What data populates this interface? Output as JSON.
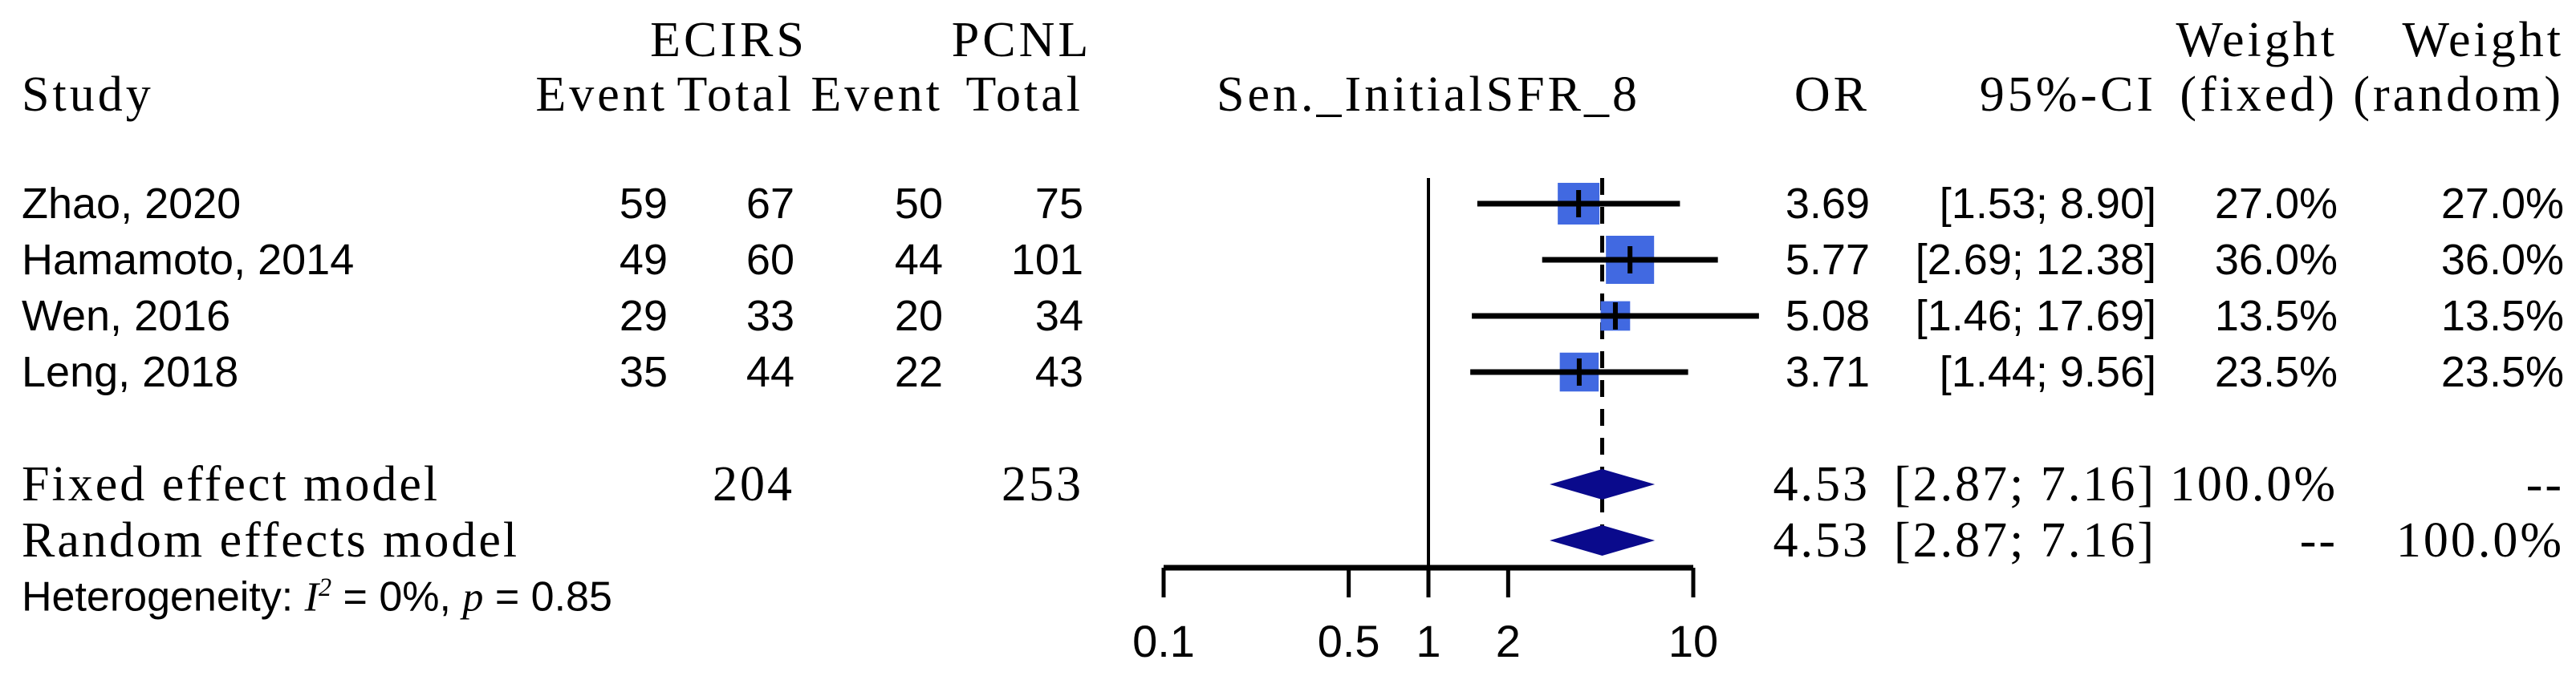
{
  "header": {
    "group1": "ECIRS",
    "group2": "PCNL",
    "study": "Study",
    "event1": "Event",
    "total1": "Total",
    "event2": "Event",
    "total2": "Total",
    "plot_title": "Sen._InitialSFR_8",
    "or": "OR",
    "ci": "95%-CI",
    "weight_word1": "Weight",
    "weight_word2": "Weight",
    "weight_fixed": "(fixed)",
    "weight_random": "(random)"
  },
  "heterogeneity": {
    "prefix": "Heterogeneity: ",
    "i_symbol": "I",
    "i_sup": "2",
    "mid": " = 0%, ",
    "p_symbol": "p",
    "end": " = 0.85"
  },
  "colors": {
    "square": "#4169E1",
    "diamond": "#0A0A8C",
    "line": "#000000"
  },
  "chart_data": {
    "type": "forest",
    "title": "Sen._InitialSFR_8",
    "effect_measure": "OR",
    "x_axis": {
      "scale": "log",
      "range": [
        0.1,
        10
      ],
      "ticks": [
        0.1,
        0.5,
        1,
        2,
        10
      ],
      "tick_labels": [
        "0.1",
        "0.5",
        "1",
        "2",
        "10"
      ],
      "reference_line": 1
    },
    "studies": [
      {
        "study": "Zhao, 2020",
        "event_e": "59",
        "total_e": "67",
        "event_c": "50",
        "total_c": "75",
        "or": 3.69,
        "ci_low": 1.53,
        "ci_high": 8.9,
        "weight_pct": 27.0,
        "or_label": "3.69",
        "ci_label": "[1.53; 8.90]",
        "w_fixed": "27.0%",
        "w_random": "27.0%"
      },
      {
        "study": "Hamamoto, 2014",
        "event_e": "49",
        "total_e": "60",
        "event_c": "44",
        "total_c": "101",
        "or": 5.77,
        "ci_low": 2.69,
        "ci_high": 12.38,
        "weight_pct": 36.0,
        "or_label": "5.77",
        "ci_label": "[2.69; 12.38]",
        "w_fixed": "36.0%",
        "w_random": "36.0%"
      },
      {
        "study": "Wen, 2016",
        "event_e": "29",
        "total_e": "33",
        "event_c": "20",
        "total_c": "34",
        "or": 5.08,
        "ci_low": 1.46,
        "ci_high": 17.69,
        "weight_pct": 13.5,
        "or_label": "5.08",
        "ci_label": "[1.46; 17.69]",
        "w_fixed": "13.5%",
        "w_random": "13.5%"
      },
      {
        "study": "Leng, 2018",
        "event_e": "35",
        "total_e": "44",
        "event_c": "22",
        "total_c": "43",
        "or": 3.71,
        "ci_low": 1.44,
        "ci_high": 9.56,
        "weight_pct": 23.5,
        "or_label": "3.71",
        "ci_label": "[1.44; 9.56]",
        "w_fixed": "23.5%",
        "w_random": "23.5%"
      }
    ],
    "summary": [
      {
        "label": "Fixed effect model",
        "total_e": "204",
        "total_c": "253",
        "or": 4.53,
        "ci_low": 2.87,
        "ci_high": 7.16,
        "or_label": "4.53",
        "ci_label": "[2.87; 7.16]",
        "w_fixed": "100.0%",
        "w_random": "--"
      },
      {
        "label": "Random effects model",
        "total_e": "",
        "total_c": "",
        "or": 4.53,
        "ci_low": 2.87,
        "ci_high": 7.16,
        "or_label": "4.53",
        "ci_label": "[2.87; 7.16]",
        "w_fixed": "--",
        "w_random": "100.0%"
      }
    ],
    "heterogeneity_text": "Heterogeneity: I2 = 0%, p = 0.85"
  }
}
